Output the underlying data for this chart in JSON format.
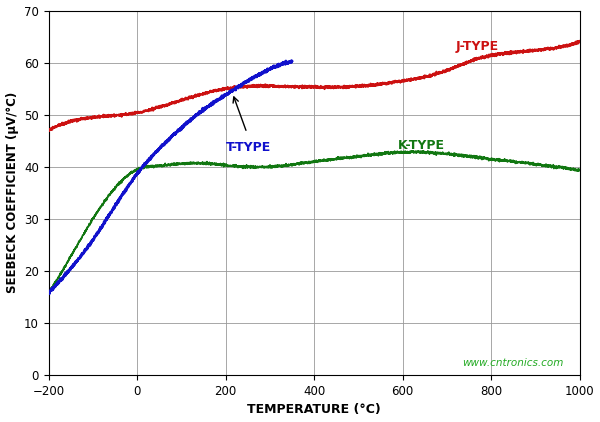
{
  "title": "",
  "xlabel": "TEMPERATURE (°C)",
  "ylabel": "SEEBECK COEFFICIENT (μV/°C)",
  "xlim": [
    -200,
    1000
  ],
  "ylim": [
    0,
    70
  ],
  "xticks": [
    -200,
    0,
    200,
    400,
    600,
    800,
    1000
  ],
  "yticks": [
    0,
    10,
    20,
    30,
    40,
    50,
    60,
    70
  ],
  "background_color": "#ffffff",
  "grid_color": "#999999",
  "watermark": "www.cntronics.com",
  "watermark_color": "#22aa22",
  "j_color": "#cc1111",
  "t_color": "#1111cc",
  "k_color": "#117711",
  "label_j": "J-TYPE",
  "label_t": "T-TYPE",
  "label_k": "K-TYPE",
  "j_knots_x": [
    -200,
    -100,
    0,
    100,
    200,
    300,
    400,
    500,
    600,
    700,
    760,
    850,
    1000
  ],
  "j_knots_y": [
    47.0,
    49.5,
    50.4,
    52.8,
    55.0,
    55.5,
    55.3,
    55.5,
    56.5,
    58.5,
    60.5,
    62.0,
    64.0
  ],
  "t_knots_x": [
    -200,
    -150,
    -100,
    -50,
    0,
    50,
    100,
    150,
    200,
    250,
    300,
    350
  ],
  "t_knots_y": [
    15.8,
    20.5,
    26.0,
    32.5,
    38.7,
    43.5,
    47.5,
    51.0,
    53.8,
    56.5,
    58.8,
    60.3
  ],
  "k_knots_x": [
    -200,
    -100,
    0,
    50,
    100,
    150,
    200,
    300,
    400,
    500,
    600,
    700,
    800,
    900,
    1000
  ],
  "k_knots_y": [
    15.8,
    30.0,
    39.5,
    40.2,
    40.6,
    40.7,
    40.3,
    40.0,
    41.0,
    42.0,
    42.8,
    42.5,
    41.5,
    40.5,
    39.3
  ],
  "figsize": [
    6.0,
    4.22
  ],
  "dpi": 100
}
